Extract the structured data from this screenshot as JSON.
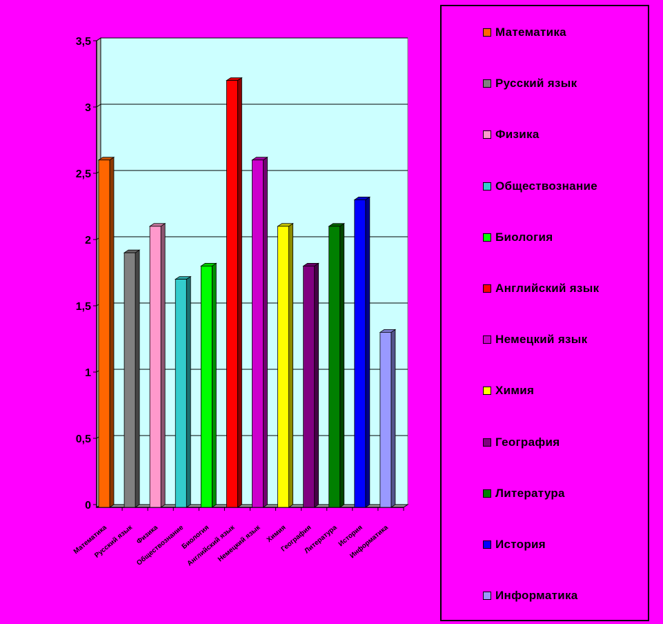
{
  "chart_data": {
    "type": "bar",
    "categories": [
      "Математика",
      "Русский язык",
      "Физика",
      "Обществознание",
      "Биология",
      "Английский язык",
      "Немецкий язык",
      "Химия",
      "География",
      "Литература",
      "История",
      "Информатика"
    ],
    "values": [
      2.6,
      1.9,
      2.1,
      1.7,
      1.8,
      3.2,
      2.6,
      2.1,
      1.8,
      2.1,
      2.3,
      1.3
    ],
    "colors": [
      "#ff6600",
      "#808080",
      "#ff99cc",
      "#33cccc",
      "#00ff00",
      "#ff0000",
      "#cc00cc",
      "#ffff00",
      "#800080",
      "#008000",
      "#0000ff",
      "#9999ff"
    ],
    "ylim": [
      0,
      3.5
    ],
    "yticks": [
      "0",
      "0,5",
      "1",
      "1,5",
      "2",
      "2,5",
      "3",
      "3,5"
    ],
    "plot_background": "#ccffff",
    "page_background": "#ff00ff",
    "grid": true,
    "legend_position": "right"
  }
}
